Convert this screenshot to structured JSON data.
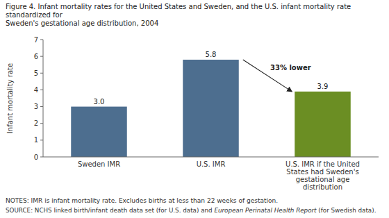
{
  "chart_data": {
    "type": "bar",
    "title": "Figure 4. Infant mortality rates for the United States and Sweden, and the U.S. infant mortality rate standardized for\nSweden's gestational age distribution, 2004",
    "categories": [
      "Sweden IMR",
      "U.S. IMR",
      "U.S. IMR if the United\nStates had Sweden's\ngestational age\ndistribution"
    ],
    "values": [
      3.0,
      5.8,
      3.9
    ],
    "value_labels": [
      "3.0",
      "5.8",
      "3.9"
    ],
    "data_labels": true,
    "colors": [
      "#4d6e8f",
      "#4d6e8f",
      "#6b8e23"
    ],
    "ylabel": "Infant mortality rate",
    "ylim": [
      0,
      7
    ],
    "yticks": [
      0,
      1,
      2,
      3,
      4,
      5,
      6,
      7
    ],
    "annotations": [
      "33% lower"
    ],
    "notes": "NOTES: IMR is infant mortality rate. Excludes births at less than 22 weeks of gestation.",
    "source": [
      "SOURCE: NCHS linked birth/infant death data set (for U.S. data) and ",
      "European Perinatal Health Report",
      " (for Swedish data)."
    ]
  }
}
